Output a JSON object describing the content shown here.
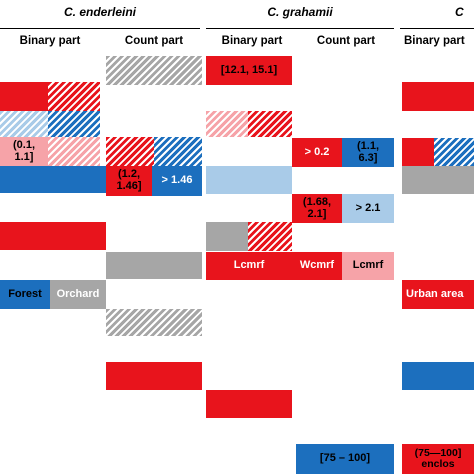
{
  "headers": {
    "species_1": "C. enderleini",
    "species_2": "C. grahamii",
    "species_3": "C",
    "binary_part": "Binary part",
    "count_part": "Count part"
  },
  "cells": {
    "g_binary_r1": "[12.1, 15.1]",
    "e_binary_r4_left": "(0.1,\n1.1]",
    "e_count_r5_left": "(1.2,\n1.46]",
    "e_count_r5_right": "> 1.46",
    "g_count_r4_left": "> 0.2",
    "g_count_r4_right": "(1.1,\n6.3]",
    "g_count_r6_left": "(1.68,\n2.1]",
    "g_count_r6_right": "> 2.1",
    "g_binary_r9": "Lcmrf",
    "g_count_r9_left": "Wcmrf",
    "g_count_r9_right": "Lcmrf",
    "e_binary_r10_left": "Forest",
    "e_binary_r10_right": "Orchard",
    "c3_binary_r10": "Urban area",
    "g_count_r15": "[75 – 100]",
    "c3_binary_r15": "(75—100]\nenclos"
  },
  "legend_colors": {
    "red": "#e8141c",
    "blue": "#1c6fbe",
    "light_blue": "#a9cbe8",
    "pink": "#f6a3a8",
    "grey": "#a6a6a6"
  }
}
